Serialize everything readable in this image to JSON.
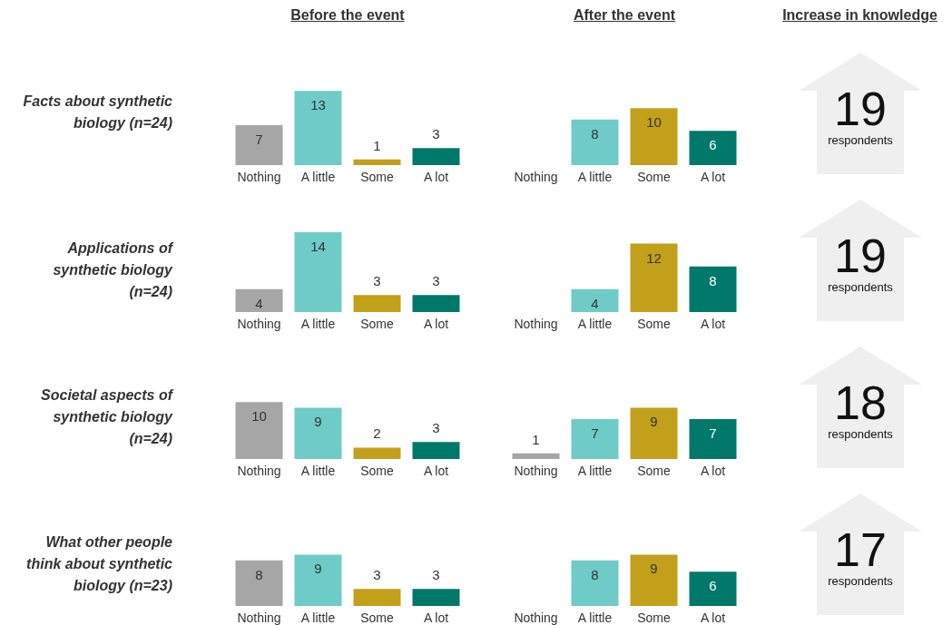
{
  "chart_data": [
    {
      "type": "bar",
      "title": "Before the event",
      "ylabel": "Facts about synthetic biology (n=24)",
      "categories": [
        "Nothing",
        "A little",
        "Some",
        "A lot"
      ],
      "values": [
        7,
        13,
        1,
        3
      ],
      "colors": [
        "#a6a6a6",
        "#6ecbc8",
        "#c2a01a",
        "#00786a"
      ],
      "value_labels": [
        "7",
        "13",
        "1",
        "3"
      ]
    },
    {
      "type": "bar",
      "title": "After the event",
      "categories": [
        "Nothing",
        "A little",
        "Some",
        "A lot"
      ],
      "values": [
        0,
        8,
        10,
        6
      ],
      "colors": [
        "#a6a6a6",
        "#6ecbc8",
        "#c2a01a",
        "#00786a"
      ],
      "value_labels": [
        null,
        "8",
        "10",
        "6"
      ]
    },
    {
      "type": "other",
      "title": "Increase in knowledge",
      "annotations": [
        "19",
        "respondents"
      ]
    },
    {
      "type": "bar",
      "ylabel": "Applications of synthetic biology (n=24)",
      "categories": [
        "Nothing",
        "A little",
        "Some",
        "A lot"
      ],
      "values": [
        4,
        14,
        3,
        3
      ],
      "colors": [
        "#a6a6a6",
        "#6ecbc8",
        "#c2a01a",
        "#00786a"
      ],
      "value_labels": [
        "4",
        "14",
        "3",
        "3"
      ]
    },
    {
      "type": "bar",
      "categories": [
        "Nothing",
        "A little",
        "Some",
        "A lot"
      ],
      "values": [
        0,
        4,
        12,
        8
      ],
      "colors": [
        "#a6a6a6",
        "#6ecbc8",
        "#c2a01a",
        "#00786a"
      ],
      "value_labels": [
        null,
        "4",
        "12",
        "8"
      ]
    },
    {
      "type": "other",
      "annotations": [
        "19",
        "respondents"
      ]
    },
    {
      "type": "bar",
      "ylabel": "Societal aspects of synthetic biology (n=24)",
      "categories": [
        "Nothing",
        "A little",
        "Some",
        "A lot"
      ],
      "values": [
        10,
        9,
        2,
        3
      ],
      "colors": [
        "#a6a6a6",
        "#6ecbc8",
        "#c2a01a",
        "#00786a"
      ],
      "value_labels": [
        "10",
        "9",
        "2",
        "3"
      ]
    },
    {
      "type": "bar",
      "categories": [
        "Nothing",
        "A little",
        "Some",
        "A lot"
      ],
      "values": [
        1,
        7,
        9,
        7
      ],
      "colors": [
        "#a6a6a6",
        "#6ecbc8",
        "#c2a01a",
        "#00786a"
      ],
      "value_labels": [
        "1",
        "7",
        "9",
        "7"
      ]
    },
    {
      "type": "other",
      "annotations": [
        "18",
        "respondents"
      ]
    },
    {
      "type": "bar",
      "ylabel": "What other people think about synthetic biology (n=23)",
      "categories": [
        "Nothing",
        "A little",
        "Some",
        "A lot"
      ],
      "values": [
        8,
        9,
        3,
        3
      ],
      "colors": [
        "#a6a6a6",
        "#6ecbc8",
        "#c2a01a",
        "#00786a"
      ],
      "value_labels": [
        "8",
        "9",
        "3",
        "3"
      ]
    },
    {
      "type": "bar",
      "categories": [
        "Nothing",
        "A little",
        "Some",
        "A lot"
      ],
      "values": [
        0,
        8,
        9,
        6
      ],
      "colors": [
        "#a6a6a6",
        "#6ecbc8",
        "#c2a01a",
        "#00786a"
      ],
      "value_labels": [
        null,
        "8",
        "9",
        "6"
      ]
    },
    {
      "type": "other",
      "annotations": [
        "17",
        "respondents"
      ]
    }
  ]
}
